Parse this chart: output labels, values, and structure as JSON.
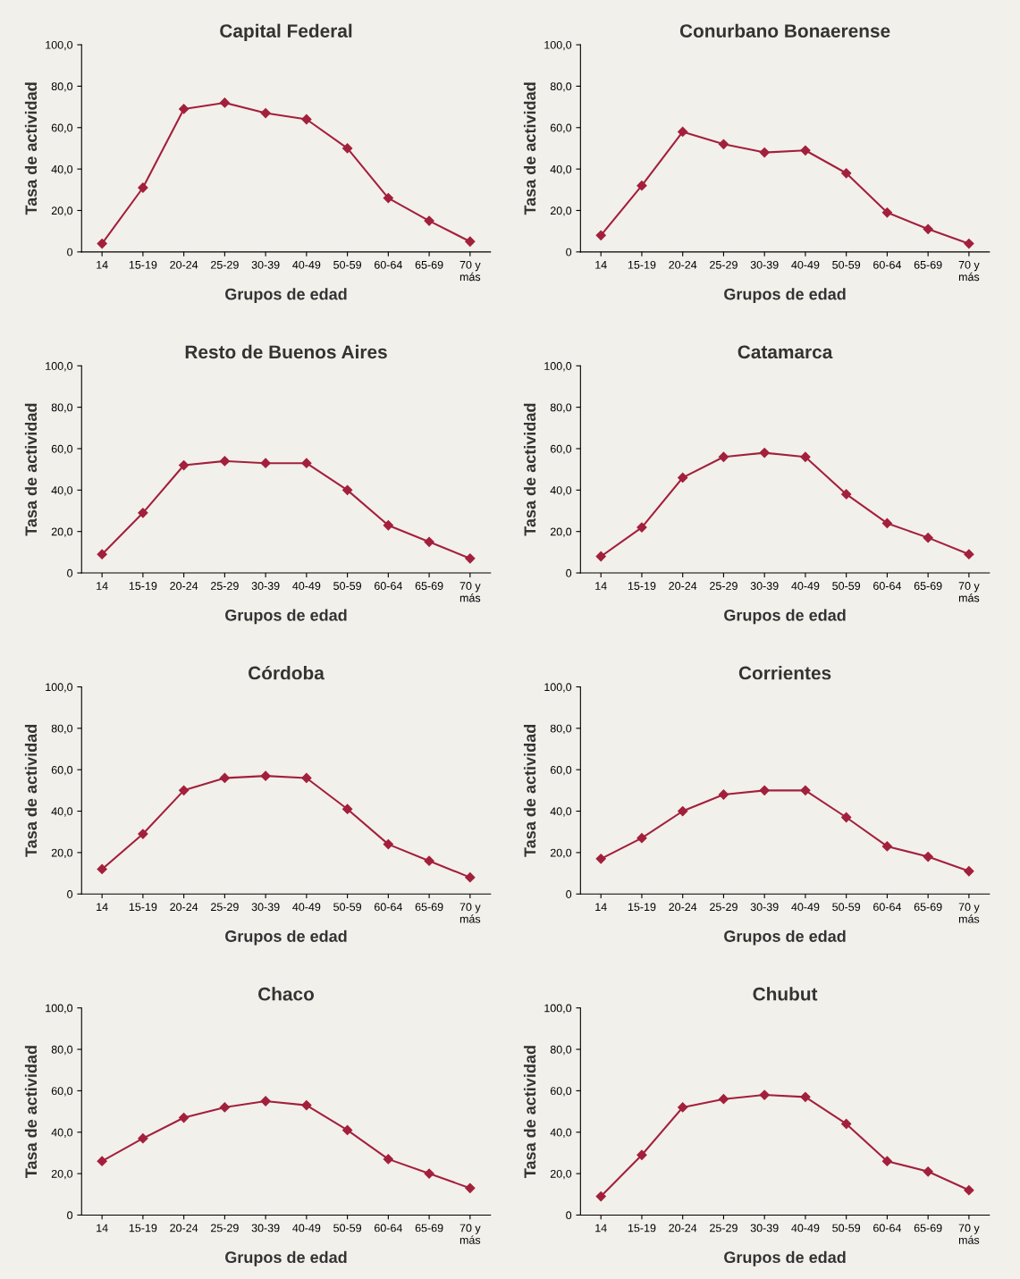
{
  "chart_data": [
    {
      "type": "line",
      "title": "Capital Federal",
      "xlabel": "Grupos de edad",
      "ylabel": "Tasa de actividad",
      "categories": [
        "14",
        "15-19",
        "20-24",
        "25-29",
        "30-39",
        "40-49",
        "50-59",
        "60-64",
        "65-69",
        "70 y\nmás"
      ],
      "series": [
        {
          "color": "#a3203c",
          "values": [
            4,
            31,
            69,
            72,
            67,
            64,
            50,
            26,
            15,
            5
          ]
        }
      ],
      "ylim": [
        0,
        100
      ],
      "yticks": [
        {
          "value": 0,
          "label": "0"
        },
        {
          "value": 20,
          "label": "20,0"
        },
        {
          "value": 40,
          "label": "40,0"
        },
        {
          "value": 60,
          "label": "60,0"
        },
        {
          "value": 80,
          "label": "80,0"
        },
        {
          "value": 100,
          "label": "100,0"
        }
      ],
      "marker": "diamond",
      "grid": false,
      "legend": false
    },
    {
      "type": "line",
      "title": "Conurbano Bonaerense",
      "xlabel": "Grupos de edad",
      "ylabel": "Tasa de actividad",
      "categories": [
        "14",
        "15-19",
        "20-24",
        "25-29",
        "30-39",
        "40-49",
        "50-59",
        "60-64",
        "65-69",
        "70 y\nmás"
      ],
      "series": [
        {
          "color": "#a3203c",
          "values": [
            8,
            32,
            58,
            52,
            48,
            49,
            38,
            19,
            11,
            4
          ]
        }
      ],
      "ylim": [
        0,
        100
      ],
      "yticks": [
        {
          "value": 0,
          "label": "0"
        },
        {
          "value": 20,
          "label": "20,0"
        },
        {
          "value": 40,
          "label": "40,0"
        },
        {
          "value": 60,
          "label": "60,0"
        },
        {
          "value": 80,
          "label": "80,0"
        },
        {
          "value": 100,
          "label": "100,0"
        }
      ],
      "marker": "diamond",
      "grid": false,
      "legend": false
    },
    {
      "type": "line",
      "title": "Resto de Buenos Aires",
      "xlabel": "Grupos de edad",
      "ylabel": "Tasa de actividad",
      "categories": [
        "14",
        "15-19",
        "20-24",
        "25-29",
        "30-39",
        "40-49",
        "50-59",
        "60-64",
        "65-69",
        "70 y\nmás"
      ],
      "series": [
        {
          "color": "#a3203c",
          "values": [
            9,
            29,
            52,
            54,
            53,
            53,
            40,
            23,
            15,
            7
          ]
        }
      ],
      "ylim": [
        0,
        100
      ],
      "yticks": [
        {
          "value": 0,
          "label": "0"
        },
        {
          "value": 20,
          "label": "20,0"
        },
        {
          "value": 40,
          "label": "40,0"
        },
        {
          "value": 60,
          "label": "60,0"
        },
        {
          "value": 80,
          "label": "80,0"
        },
        {
          "value": 100,
          "label": "100,0"
        }
      ],
      "marker": "diamond",
      "grid": false,
      "legend": false
    },
    {
      "type": "line",
      "title": "Catamarca",
      "xlabel": "Grupos de edad",
      "ylabel": "Tasa de actividad",
      "categories": [
        "14",
        "15-19",
        "20-24",
        "25-29",
        "30-39",
        "40-49",
        "50-59",
        "60-64",
        "65-69",
        "70 y\nmás"
      ],
      "series": [
        {
          "color": "#a3203c",
          "values": [
            8,
            22,
            46,
            56,
            58,
            56,
            38,
            24,
            17,
            9
          ]
        }
      ],
      "ylim": [
        0,
        100
      ],
      "yticks": [
        {
          "value": 0,
          "label": "0"
        },
        {
          "value": 20,
          "label": "20,0"
        },
        {
          "value": 40,
          "label": "40,0"
        },
        {
          "value": 60,
          "label": "60,0"
        },
        {
          "value": 80,
          "label": "80,0"
        },
        {
          "value": 100,
          "label": "100,0"
        }
      ],
      "marker": "diamond",
      "grid": false,
      "legend": false
    },
    {
      "type": "line",
      "title": "Córdoba",
      "xlabel": "Grupos de edad",
      "ylabel": "Tasa de actividad",
      "categories": [
        "14",
        "15-19",
        "20-24",
        "25-29",
        "30-39",
        "40-49",
        "50-59",
        "60-64",
        "65-69",
        "70 y\nmás"
      ],
      "series": [
        {
          "color": "#a3203c",
          "values": [
            12,
            29,
            50,
            56,
            57,
            56,
            41,
            24,
            16,
            8
          ]
        }
      ],
      "ylim": [
        0,
        100
      ],
      "yticks": [
        {
          "value": 0,
          "label": "0"
        },
        {
          "value": 20,
          "label": "20,0"
        },
        {
          "value": 40,
          "label": "40,0"
        },
        {
          "value": 60,
          "label": "60,0"
        },
        {
          "value": 80,
          "label": "80,0"
        },
        {
          "value": 100,
          "label": "100,0"
        }
      ],
      "marker": "diamond",
      "grid": false,
      "legend": false
    },
    {
      "type": "line",
      "title": "Corrientes",
      "xlabel": "Grupos de edad",
      "ylabel": "Tasa de actividad",
      "categories": [
        "14",
        "15-19",
        "20-24",
        "25-29",
        "30-39",
        "40-49",
        "50-59",
        "60-64",
        "65-69",
        "70 y\nmás"
      ],
      "series": [
        {
          "color": "#a3203c",
          "values": [
            17,
            27,
            40,
            48,
            50,
            50,
            37,
            23,
            18,
            11
          ]
        }
      ],
      "ylim": [
        0,
        100
      ],
      "yticks": [
        {
          "value": 0,
          "label": "0"
        },
        {
          "value": 20,
          "label": "20,0"
        },
        {
          "value": 40,
          "label": "40,0"
        },
        {
          "value": 60,
          "label": "60,0"
        },
        {
          "value": 80,
          "label": "80,0"
        },
        {
          "value": 100,
          "label": "100,0"
        }
      ],
      "marker": "diamond",
      "grid": false,
      "legend": false
    },
    {
      "type": "line",
      "title": "Chaco",
      "xlabel": "Grupos de edad",
      "ylabel": "Tasa de actividad",
      "categories": [
        "14",
        "15-19",
        "20-24",
        "25-29",
        "30-39",
        "40-49",
        "50-59",
        "60-64",
        "65-69",
        "70 y\nmás"
      ],
      "series": [
        {
          "color": "#a3203c",
          "values": [
            26,
            37,
            47,
            52,
            55,
            53,
            41,
            27,
            20,
            13
          ]
        }
      ],
      "ylim": [
        0,
        100
      ],
      "yticks": [
        {
          "value": 0,
          "label": "0"
        },
        {
          "value": 20,
          "label": "20,0"
        },
        {
          "value": 40,
          "label": "40,0"
        },
        {
          "value": 60,
          "label": "60,0"
        },
        {
          "value": 80,
          "label": "80,0"
        },
        {
          "value": 100,
          "label": "100,0"
        }
      ],
      "marker": "diamond",
      "grid": false,
      "legend": false
    },
    {
      "type": "line",
      "title": "Chubut",
      "xlabel": "Grupos de edad",
      "ylabel": "Tasa de actividad",
      "categories": [
        "14",
        "15-19",
        "20-24",
        "25-29",
        "30-39",
        "40-49",
        "50-59",
        "60-64",
        "65-69",
        "70 y\nmás"
      ],
      "series": [
        {
          "color": "#a3203c",
          "values": [
            9,
            29,
            52,
            56,
            58,
            57,
            44,
            26,
            21,
            12
          ]
        }
      ],
      "ylim": [
        0,
        100
      ],
      "yticks": [
        {
          "value": 0,
          "label": "0"
        },
        {
          "value": 20,
          "label": "20,0"
        },
        {
          "value": 40,
          "label": "40,0"
        },
        {
          "value": 60,
          "label": "60,0"
        },
        {
          "value": 80,
          "label": "80,0"
        },
        {
          "value": 100,
          "label": "100,0"
        }
      ],
      "marker": "diamond",
      "grid": false,
      "legend": false
    }
  ]
}
